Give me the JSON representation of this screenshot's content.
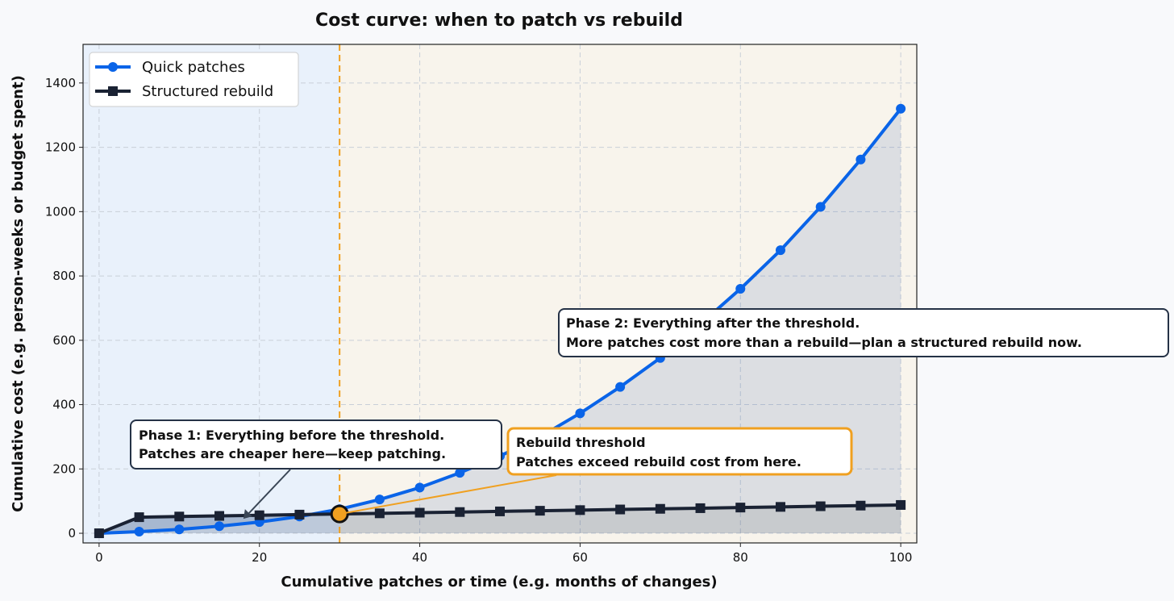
{
  "chart_data": {
    "type": "line",
    "title": "Cost curve: when to patch vs rebuild",
    "xlabel": "Cumulative patches or time (e.g. months of changes)",
    "ylabel": "Cumulative cost (e.g. person-weeks or budget spent)",
    "xlim": [
      -2,
      102
    ],
    "ylim": [
      -30,
      1520
    ],
    "x_ticks": [
      0,
      20,
      40,
      60,
      80,
      100
    ],
    "y_ticks": [
      0,
      200,
      400,
      600,
      800,
      1000,
      1200,
      1400
    ],
    "grid": true,
    "legend_position": "top-left",
    "x": [
      0,
      5,
      10,
      15,
      20,
      25,
      30,
      35,
      40,
      45,
      50,
      55,
      60,
      65,
      70,
      75,
      80,
      85,
      90,
      95,
      100
    ],
    "series": [
      {
        "name": "Quick patches",
        "color": "#0a64e8",
        "marker": "circle",
        "values": [
          0,
          5,
          12,
          22,
          35,
          52,
          75,
          105,
          142,
          188,
          240,
          300,
          373,
          455,
          545,
          650,
          760,
          880,
          1015,
          1162,
          1320
        ]
      },
      {
        "name": "Structured rebuild",
        "color": "#1a2233",
        "marker": "square",
        "values": [
          0,
          50,
          52,
          54,
          56,
          58,
          60,
          62,
          64,
          66,
          68,
          70,
          72,
          74,
          76,
          78,
          80,
          82,
          84,
          86,
          88
        ]
      }
    ],
    "threshold": {
      "x": 30,
      "y": 60,
      "color": "#f0a020"
    },
    "regions": [
      {
        "name": "before-threshold",
        "x_range": [
          -2,
          30
        ],
        "color": "#e9f1fb"
      },
      {
        "name": "after-threshold",
        "x_range": [
          30,
          102
        ],
        "color": "#f8f4ec"
      }
    ],
    "annotations": [
      {
        "id": "phase1",
        "lines": [
          "Phase 1: Everything before the threshold.",
          "Patches are cheaper here—keep patching."
        ],
        "arrow_to": [
          18,
          45
        ]
      },
      {
        "id": "threshold",
        "lines": [
          "Rebuild threshold",
          "Patches exceed rebuild cost from here."
        ],
        "arrow_to": [
          30,
          60
        ]
      },
      {
        "id": "phase2",
        "lines": [
          "Phase 2: Everything after the threshold.",
          "More patches cost more than a rebuild—plan a structured rebuild now."
        ]
      }
    ]
  }
}
